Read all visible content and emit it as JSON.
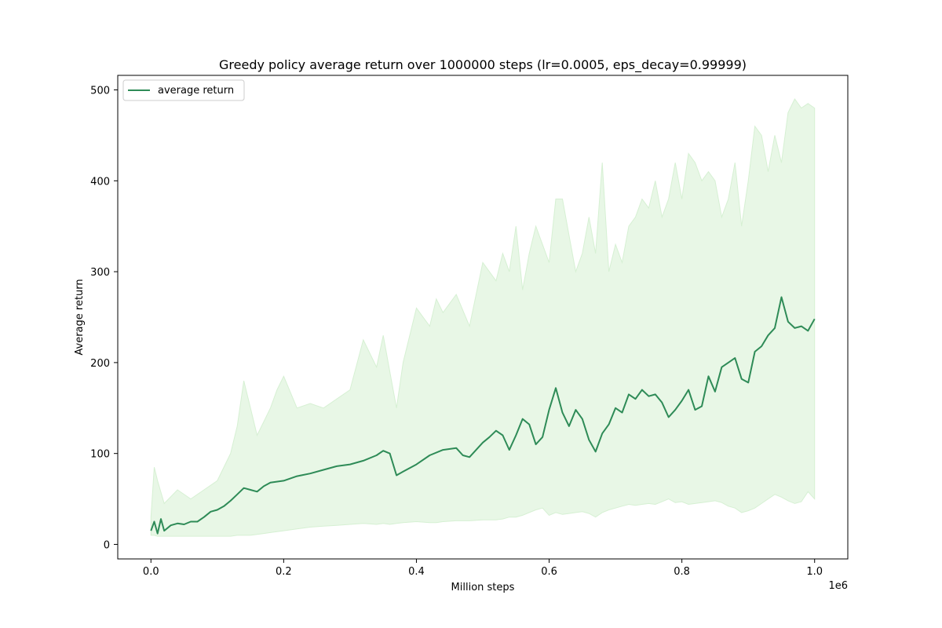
{
  "chart_data": {
    "type": "line",
    "title": "Greedy policy average return over 1000000 steps (lr=0.0005, eps_decay=0.99999)",
    "xlabel": "Million steps",
    "ylabel": "Average return",
    "x_offset_label": "1e6",
    "xlim": [
      -0.05,
      1.05
    ],
    "ylim": [
      -16,
      516
    ],
    "x_ticks": [
      0.0,
      0.2,
      0.4,
      0.6,
      0.8,
      1.0
    ],
    "x_tick_labels": [
      "0.0",
      "0.2",
      "0.4",
      "0.6",
      "0.8",
      "1.0"
    ],
    "y_ticks": [
      0,
      100,
      200,
      300,
      400,
      500
    ],
    "y_tick_labels": [
      "0",
      "100",
      "200",
      "300",
      "400",
      "500"
    ],
    "grid": false,
    "legend_position": "upper-left",
    "colors": {
      "line": "#2e8b57",
      "band_fill": "#e8f7e6",
      "band_edge": "#d6f0d3"
    },
    "series": [
      {
        "name": "average return",
        "x": [
          0.0,
          0.005,
          0.01,
          0.015,
          0.02,
          0.03,
          0.04,
          0.05,
          0.06,
          0.07,
          0.08,
          0.09,
          0.1,
          0.11,
          0.12,
          0.13,
          0.14,
          0.15,
          0.16,
          0.17,
          0.18,
          0.2,
          0.22,
          0.24,
          0.26,
          0.28,
          0.3,
          0.32,
          0.34,
          0.35,
          0.36,
          0.37,
          0.38,
          0.4,
          0.42,
          0.44,
          0.46,
          0.47,
          0.48,
          0.5,
          0.51,
          0.52,
          0.53,
          0.54,
          0.55,
          0.56,
          0.57,
          0.58,
          0.59,
          0.6,
          0.61,
          0.62,
          0.63,
          0.64,
          0.65,
          0.66,
          0.67,
          0.68,
          0.69,
          0.7,
          0.71,
          0.72,
          0.73,
          0.74,
          0.75,
          0.76,
          0.77,
          0.78,
          0.79,
          0.8,
          0.81,
          0.82,
          0.83,
          0.84,
          0.85,
          0.86,
          0.87,
          0.88,
          0.89,
          0.9,
          0.91,
          0.92,
          0.93,
          0.94,
          0.95,
          0.96,
          0.97,
          0.98,
          0.99,
          1.0
        ],
        "y": [
          15,
          25,
          12,
          28,
          15,
          21,
          23,
          22,
          25,
          25,
          30,
          36,
          38,
          42,
          48,
          55,
          62,
          60,
          58,
          64,
          68,
          70,
          75,
          78,
          82,
          86,
          88,
          92,
          98,
          103,
          100,
          76,
          80,
          88,
          98,
          104,
          106,
          98,
          96,
          112,
          118,
          125,
          120,
          104,
          120,
          138,
          132,
          110,
          118,
          148,
          172,
          145,
          130,
          148,
          138,
          115,
          102,
          122,
          132,
          150,
          145,
          165,
          160,
          170,
          163,
          165,
          156,
          140,
          148,
          158,
          170,
          148,
          152,
          185,
          168,
          195,
          200,
          205,
          182,
          178,
          212,
          218,
          230,
          238,
          272,
          245,
          238,
          240,
          235,
          248
        ]
      }
    ],
    "band": {
      "x": [
        0.0,
        0.005,
        0.01,
        0.02,
        0.04,
        0.06,
        0.08,
        0.1,
        0.12,
        0.13,
        0.14,
        0.15,
        0.16,
        0.17,
        0.18,
        0.19,
        0.2,
        0.22,
        0.24,
        0.26,
        0.28,
        0.3,
        0.32,
        0.34,
        0.35,
        0.36,
        0.37,
        0.38,
        0.4,
        0.42,
        0.43,
        0.44,
        0.46,
        0.48,
        0.5,
        0.52,
        0.53,
        0.54,
        0.55,
        0.56,
        0.57,
        0.58,
        0.59,
        0.6,
        0.61,
        0.62,
        0.63,
        0.64,
        0.65,
        0.66,
        0.67,
        0.68,
        0.69,
        0.7,
        0.71,
        0.72,
        0.73,
        0.74,
        0.75,
        0.76,
        0.77,
        0.78,
        0.79,
        0.8,
        0.81,
        0.82,
        0.83,
        0.84,
        0.85,
        0.86,
        0.87,
        0.88,
        0.89,
        0.9,
        0.91,
        0.92,
        0.93,
        0.94,
        0.95,
        0.96,
        0.97,
        0.98,
        0.99,
        1.0
      ],
      "upper": [
        30,
        85,
        70,
        45,
        60,
        50,
        60,
        70,
        100,
        130,
        180,
        150,
        120,
        135,
        150,
        170,
        185,
        150,
        155,
        150,
        160,
        170,
        225,
        195,
        230,
        190,
        150,
        200,
        260,
        240,
        270,
        255,
        275,
        240,
        310,
        290,
        320,
        300,
        350,
        280,
        320,
        350,
        330,
        310,
        380,
        380,
        340,
        300,
        320,
        360,
        320,
        420,
        300,
        330,
        310,
        350,
        360,
        380,
        370,
        400,
        360,
        380,
        420,
        380,
        430,
        420,
        400,
        410,
        400,
        360,
        380,
        420,
        350,
        400,
        460,
        450,
        410,
        450,
        420,
        475,
        490,
        480,
        485,
        480
      ],
      "lower": [
        10,
        10,
        9,
        9,
        9,
        9,
        9,
        9,
        9,
        10,
        10,
        10,
        11,
        12,
        13,
        14,
        15,
        17,
        19,
        20,
        21,
        22,
        23,
        22,
        23,
        22,
        23,
        24,
        25,
        24,
        24,
        25,
        26,
        26,
        27,
        27,
        28,
        30,
        30,
        32,
        35,
        38,
        40,
        32,
        35,
        33,
        34,
        35,
        36,
        34,
        30,
        35,
        38,
        40,
        42,
        44,
        43,
        44,
        45,
        44,
        47,
        50,
        46,
        47,
        44,
        45,
        46,
        47,
        48,
        46,
        42,
        40,
        35,
        37,
        40,
        45,
        50,
        55,
        52,
        48,
        45,
        47,
        58,
        50
      ]
    }
  }
}
